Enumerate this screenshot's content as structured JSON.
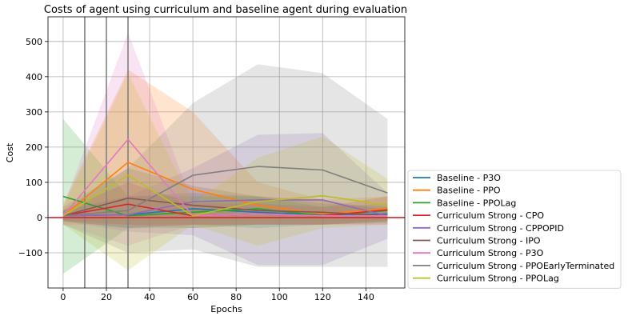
{
  "chart_data": {
    "type": "line",
    "title": "Costs of agent using curriculum and baseline agent during evaluation",
    "xlabel": "Epochs",
    "ylabel": "Cost",
    "xlim": [
      -7,
      158
    ],
    "ylim": [
      -200,
      570
    ],
    "xticks": [
      0,
      20,
      40,
      60,
      80,
      100,
      120,
      140
    ],
    "yticks": [
      -100,
      0,
      100,
      200,
      300,
      400,
      500
    ],
    "ytick_labels": [
      "−100",
      "0",
      "100",
      "200",
      "300",
      "400",
      "500"
    ],
    "grid": true,
    "legend_position": "lower-right-outside",
    "vertical_lines": [
      10,
      20,
      30
    ],
    "horizontal_line": {
      "y": 0,
      "color": "#d62728"
    },
    "x": [
      0,
      30,
      60,
      90,
      120,
      150
    ],
    "series": [
      {
        "name": "Baseline - P3O",
        "color": "#1f77b4",
        "values": [
          5,
          8,
          25,
          15,
          8,
          10
        ],
        "lower": [
          -10,
          -30,
          -20,
          -30,
          -20,
          -15
        ],
        "upper": [
          20,
          60,
          70,
          60,
          40,
          30
        ]
      },
      {
        "name": "Baseline - PPO",
        "color": "#ff7f0e",
        "values": [
          5,
          157,
          80,
          35,
          10,
          25
        ],
        "lower": [
          -20,
          -20,
          -30,
          -20,
          -20,
          -10
        ],
        "upper": [
          40,
          420,
          300,
          100,
          50,
          60
        ]
      },
      {
        "name": "Baseline - PPOLag",
        "color": "#2ca02c",
        "values": [
          60,
          5,
          15,
          25,
          5,
          20
        ],
        "lower": [
          -160,
          -30,
          -30,
          -20,
          -20,
          -10
        ],
        "upper": [
          280,
          60,
          60,
          60,
          30,
          40
        ]
      },
      {
        "name": "Curriculum Strong - CPO",
        "color": "#d62728",
        "values": [
          5,
          38,
          5,
          10,
          5,
          22
        ],
        "lower": [
          -10,
          -20,
          -20,
          -20,
          -20,
          -20
        ],
        "upper": [
          20,
          100,
          40,
          40,
          30,
          60
        ]
      },
      {
        "name": "Curriculum Strong - CPPOPID",
        "color": "#9467bd",
        "values": [
          5,
          8,
          45,
          50,
          50,
          5
        ],
        "lower": [
          -10,
          -40,
          -50,
          -135,
          -135,
          -60
        ],
        "upper": [
          20,
          60,
          140,
          235,
          240,
          70
        ]
      },
      {
        "name": "Curriculum Strong - IPO",
        "color": "#8c564b",
        "values": [
          5,
          55,
          35,
          20,
          15,
          5
        ],
        "lower": [
          -10,
          -30,
          -20,
          -20,
          -20,
          -10
        ],
        "upper": [
          20,
          140,
          90,
          60,
          50,
          20
        ]
      },
      {
        "name": "Curriculum Strong - P3O",
        "color": "#e377c2",
        "values": [
          5,
          222,
          5,
          10,
          5,
          5
        ],
        "lower": [
          -20,
          -80,
          -20,
          -20,
          -20,
          -10
        ],
        "upper": [
          30,
          525,
          40,
          40,
          30,
          30
        ]
      },
      {
        "name": "Curriculum Strong - PPOEarlyTerminated",
        "color": "#7f7f7f",
        "values": [
          5,
          20,
          120,
          145,
          135,
          70
        ],
        "lower": [
          -20,
          -100,
          -90,
          -140,
          -140,
          -140
        ],
        "upper": [
          30,
          140,
          325,
          435,
          410,
          280
        ]
      },
      {
        "name": "Curriculum Strong - PPOLag",
        "color": "#bcbd22",
        "values": [
          5,
          120,
          5,
          45,
          62,
          35
        ],
        "lower": [
          -20,
          -150,
          -20,
          -80,
          -30,
          -20
        ],
        "upper": [
          30,
          410,
          40,
          170,
          230,
          110
        ]
      }
    ]
  }
}
